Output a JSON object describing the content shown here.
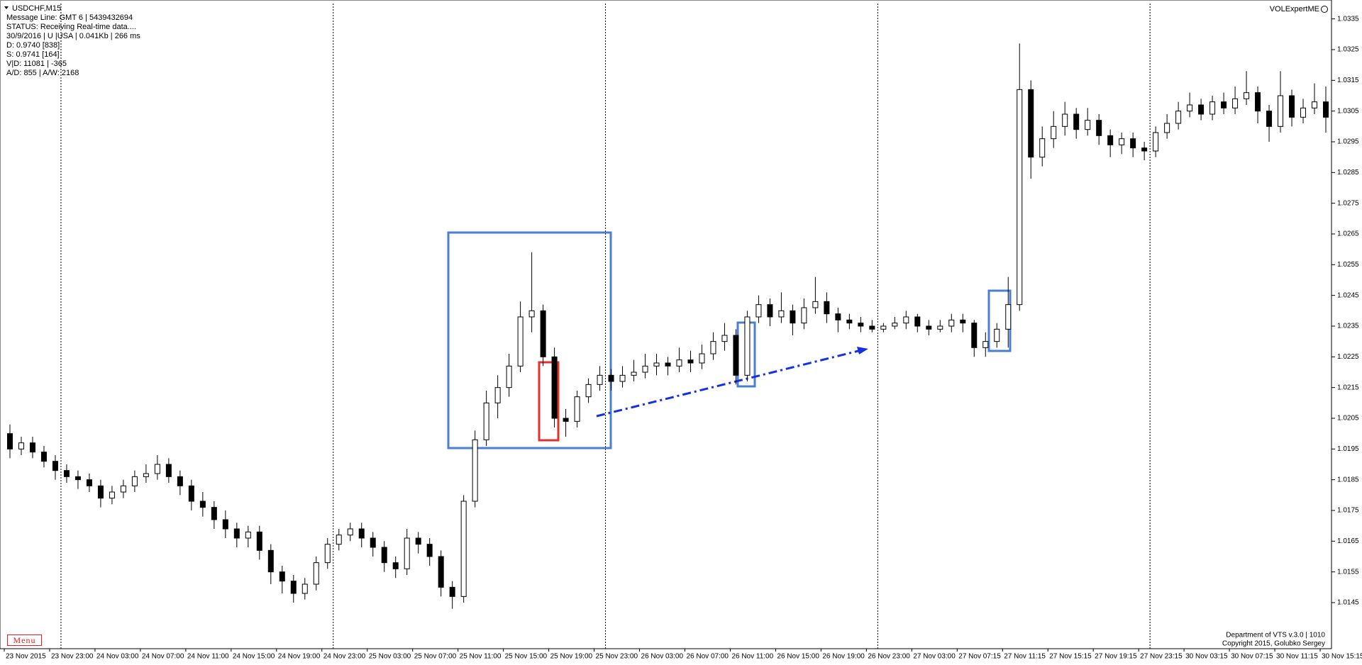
{
  "chart_data": {
    "type": "candlestick",
    "title": "USDCHF,M15",
    "info": [
      "Message Line: GMT 6 | 5439432694",
      "STATUS:  Receiving Real-time data....",
      "30/9/2016 | U |USA | 0.041Kb | 266 ms",
      "D: 0.9740  [838]",
      "S: 0.9741  [164]",
      "V|D: 11081 | -365",
      "A/D: 855 | A/W: 2168"
    ],
    "categories": [
      "23 Nov 2015",
      null,
      null,
      null,
      "23 Nov 23:00",
      null,
      null,
      null,
      "24 Nov 03:00",
      null,
      null,
      null,
      "24 Nov 07:00",
      null,
      null,
      null,
      "24 Nov 11:00",
      null,
      null,
      null,
      "24 Nov 15:00",
      null,
      null,
      null,
      "24 Nov 19:00",
      null,
      null,
      null,
      "24 Nov 23:00",
      null,
      null,
      null,
      "25 Nov 03:00",
      null,
      null,
      null,
      "25 Nov 07:00",
      null,
      null,
      null,
      "25 Nov 11:00",
      null,
      null,
      null,
      "25 Nov 15:00",
      null,
      null,
      null,
      "25 Nov 19:00",
      null,
      null,
      null,
      "25 Nov 23:00",
      null,
      null,
      null,
      "26 Nov 03:00",
      null,
      null,
      null,
      "26 Nov 07:00",
      null,
      null,
      null,
      "26 Nov 11:00",
      null,
      null,
      null,
      "26 Nov 15:00",
      null,
      null,
      null,
      "26 Nov 19:00",
      null,
      null,
      null,
      "26 Nov 23:00",
      null,
      null,
      null,
      "27 Nov 03:00",
      null,
      null,
      null,
      "27 Nov 07:15",
      null,
      null,
      null,
      "27 Nov 11:15",
      null,
      null,
      null,
      "27 Nov 15:15",
      null,
      null,
      null,
      "27 Nov 19:15",
      null,
      null,
      null,
      "27 Nov 23:15",
      null,
      null,
      null,
      "30 Nov 03:15",
      null,
      null,
      null,
      "30 Nov 07:15",
      null,
      null,
      null,
      "30 Nov 11:15",
      null,
      null,
      null,
      "30 Nov 15:15"
    ],
    "open": [
      1.02,
      1.0195,
      1.0197,
      1.0194,
      1.0191,
      1.0188,
      1.0186,
      1.0185,
      1.0183,
      1.0179,
      1.0181,
      1.0183,
      1.0186,
      1.0187,
      1.019,
      1.0186,
      1.0183,
      1.0178,
      1.0176,
      1.0172,
      1.0169,
      1.0166,
      1.0168,
      1.0162,
      1.0155,
      1.0152,
      1.0148,
      1.0151,
      1.0158,
      1.0164,
      1.0167,
      1.0169,
      1.0166,
      1.0163,
      1.0158,
      1.0156,
      1.0166,
      1.0164,
      1.016,
      1.015,
      1.0147,
      1.0178,
      1.0198,
      1.021,
      1.0215,
      1.0222,
      1.0238,
      1.024,
      1.0225,
      1.0205,
      1.0204,
      1.0212,
      1.0216,
      1.0219,
      1.0217,
      1.0219,
      1.022,
      1.0222,
      1.0223,
      1.0222,
      1.0224,
      1.0223,
      1.0226,
      1.023,
      1.0232,
      1.0219,
      1.0238,
      1.0242,
      1.0238,
      1.024,
      1.0236,
      1.0241,
      1.0243,
      1.0239,
      1.0237,
      1.0236,
      1.0235,
      1.0234,
      1.0235,
      1.0236,
      1.0238,
      1.0235,
      1.0234,
      1.0235,
      1.0237,
      1.0236,
      1.0228,
      1.023,
      1.0234,
      1.0242,
      1.0312,
      1.029,
      1.0296,
      1.03,
      1.0304,
      1.0299,
      1.0302,
      1.0297,
      1.0294,
      1.0296,
      1.0293,
      1.0292,
      1.0298,
      1.0301,
      1.0305,
      1.0307,
      1.0304,
      1.0308,
      1.0306,
      1.0309,
      1.0311,
      1.0305,
      1.03,
      1.031,
      1.0303,
      1.0306,
      1.0308
    ],
    "high": [
      1.0203,
      1.0199,
      1.0199,
      1.0196,
      1.0193,
      1.019,
      1.0188,
      1.0187,
      1.0185,
      1.0183,
      1.0185,
      1.0188,
      1.019,
      1.0193,
      1.0192,
      1.0188,
      1.0185,
      1.0181,
      1.0178,
      1.0175,
      1.0171,
      1.017,
      1.017,
      1.0164,
      1.0157,
      1.0154,
      1.0153,
      1.016,
      1.0166,
      1.0169,
      1.0171,
      1.0171,
      1.0168,
      1.0165,
      1.016,
      1.0169,
      1.0168,
      1.0166,
      1.0162,
      1.0152,
      1.018,
      1.0201,
      1.0214,
      1.0219,
      1.0226,
      1.0243,
      1.0259,
      1.0242,
      1.0228,
      1.0208,
      1.0214,
      1.0218,
      1.0222,
      1.0221,
      1.0222,
      1.0224,
      1.0226,
      1.0226,
      1.0225,
      1.0228,
      1.0227,
      1.0229,
      1.0233,
      1.0236,
      1.0234,
      1.024,
      1.0245,
      1.0244,
      1.0246,
      1.0242,
      1.0244,
      1.0251,
      1.0246,
      1.0241,
      1.0239,
      1.0238,
      1.0237,
      1.0236,
      1.0238,
      1.024,
      1.0239,
      1.0237,
      1.0237,
      1.0239,
      1.0239,
      1.0237,
      1.0233,
      1.0236,
      1.0251,
      1.0327,
      1.0315,
      1.03,
      1.0305,
      1.0308,
      1.0306,
      1.0306,
      1.0304,
      1.0299,
      1.0298,
      1.0298,
      1.0295,
      1.03,
      1.0304,
      1.0308,
      1.0311,
      1.0309,
      1.031,
      1.0311,
      1.0313,
      1.0318,
      1.0313,
      1.0307,
      1.0318,
      1.0312,
      1.0309,
      1.0314,
      1.0313
    ],
    "low": [
      1.0192,
      1.0193,
      1.0192,
      1.0189,
      1.0185,
      1.0184,
      1.0182,
      1.0181,
      1.0176,
      1.0177,
      1.0179,
      1.0181,
      1.0184,
      1.0185,
      1.0184,
      1.018,
      1.0175,
      1.0173,
      1.0169,
      1.0166,
      1.0163,
      1.0163,
      1.0159,
      1.0151,
      1.0148,
      1.0145,
      1.0146,
      1.0149,
      1.0156,
      1.0162,
      1.0165,
      1.0163,
      1.016,
      1.0155,
      1.0153,
      1.0154,
      1.0161,
      1.0157,
      1.0147,
      1.0143,
      1.0145,
      1.0176,
      1.0196,
      1.0205,
      1.0212,
      1.022,
      1.0233,
      1.0222,
      1.0202,
      1.0199,
      1.0202,
      1.021,
      1.0214,
      1.0214,
      1.0215,
      1.0217,
      1.0218,
      1.0219,
      1.0219,
      1.022,
      1.022,
      1.0221,
      1.0224,
      1.0227,
      1.0216,
      1.0217,
      1.0236,
      1.0235,
      1.0236,
      1.0232,
      1.0234,
      1.0239,
      1.0236,
      1.0233,
      1.0234,
      1.0233,
      1.0233,
      1.0233,
      1.0234,
      1.0234,
      1.0233,
      1.0232,
      1.0233,
      1.0233,
      1.0233,
      1.0225,
      1.0225,
      1.0228,
      1.0228,
      1.024,
      1.0283,
      1.0287,
      1.0293,
      1.0297,
      1.0296,
      1.0297,
      1.0294,
      1.029,
      1.0291,
      1.029,
      1.0289,
      1.029,
      1.0296,
      1.0299,
      1.0303,
      1.0302,
      1.0302,
      1.0304,
      1.0304,
      1.0307,
      1.0301,
      1.0295,
      1.0298,
      1.03,
      1.0301,
      1.0304,
      1.0298
    ],
    "close": [
      1.0195,
      1.0197,
      1.0194,
      1.0191,
      1.0188,
      1.0186,
      1.0185,
      1.0183,
      1.0179,
      1.0181,
      1.0183,
      1.0186,
      1.0187,
      1.019,
      1.0186,
      1.0183,
      1.0178,
      1.0176,
      1.0172,
      1.0169,
      1.0166,
      1.0168,
      1.0162,
      1.0155,
      1.0152,
      1.0148,
      1.0151,
      1.0158,
      1.0164,
      1.0167,
      1.0169,
      1.0166,
      1.0163,
      1.0158,
      1.0156,
      1.0166,
      1.0164,
      1.016,
      1.015,
      1.0147,
      1.0178,
      1.0198,
      1.021,
      1.0215,
      1.0222,
      1.0238,
      1.024,
      1.0225,
      1.0205,
      1.0204,
      1.0212,
      1.0216,
      1.0219,
      1.0217,
      1.0219,
      1.022,
      1.0222,
      1.0223,
      1.0222,
      1.0224,
      1.0223,
      1.0226,
      1.023,
      1.0232,
      1.0219,
      1.0238,
      1.0242,
      1.0238,
      1.024,
      1.0236,
      1.0241,
      1.0243,
      1.0239,
      1.0237,
      1.0236,
      1.0235,
      1.0234,
      1.0235,
      1.0236,
      1.0238,
      1.0235,
      1.0234,
      1.0235,
      1.0237,
      1.0236,
      1.0228,
      1.023,
      1.0234,
      1.0242,
      1.0312,
      1.029,
      1.0296,
      1.03,
      1.0304,
      1.0299,
      1.0302,
      1.0297,
      1.0294,
      1.0296,
      1.0293,
      1.0292,
      1.0298,
      1.0301,
      1.0305,
      1.0307,
      1.0304,
      1.0308,
      1.0306,
      1.0309,
      1.0311,
      1.0305,
      1.03,
      1.031,
      1.0303,
      1.0306,
      1.0308,
      1.0303
    ],
    "up_color": "#ffffff",
    "down_color": "#000000",
    "wick_color": "#000000",
    "separators": [
      5,
      29,
      53,
      77,
      101
    ],
    "ylim": [
      1.013,
      1.034
    ],
    "yticks": [
      1.0145,
      1.0155,
      1.0165,
      1.0175,
      1.0185,
      1.0195,
      1.0205,
      1.0215,
      1.0225,
      1.0235,
      1.0245,
      1.0255,
      1.0265,
      1.0275,
      1.0285,
      1.0295,
      1.0305,
      1.0315,
      1.0325,
      1.0335
    ],
    "grid": false
  },
  "ui": {
    "indicator": "VOLExpertME",
    "footer": [
      "Department of VTS  v.3.0 | 1010",
      "Copyright 2015, Golubko Sergey"
    ],
    "menu": "Menu"
  }
}
